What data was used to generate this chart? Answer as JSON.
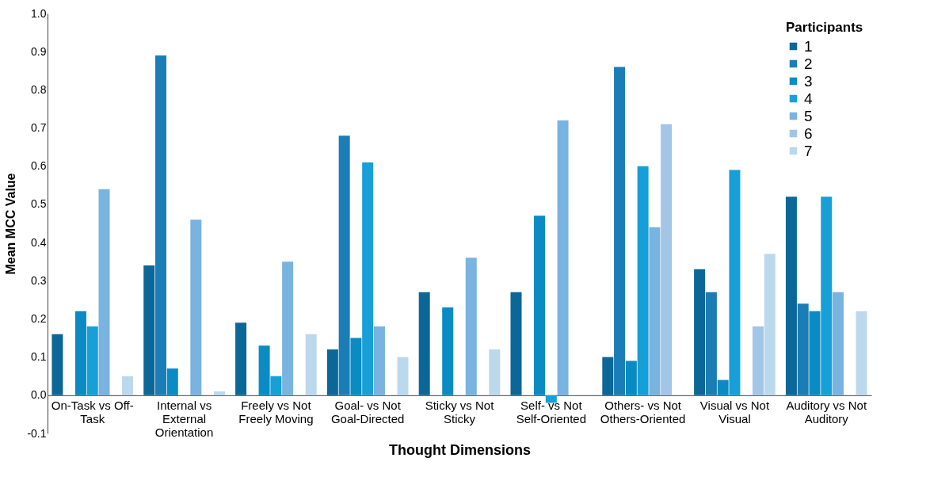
{
  "chart_data": {
    "type": "bar",
    "xlabel": "Thought Dimensions",
    "ylabel": "Mean MCC Value",
    "legend_title": "Participants",
    "categories": [
      "On-Task vs Off-Task",
      "Internal vs External Orientation",
      "Freely vs Not Freely Moving",
      "Goal- vs Not Goal-Directed",
      "Sticky vs Not Sticky",
      "Self- vs Not Self-Oriented",
      "Others- vs Not Others-Oriented",
      "Visual vs Not Visual",
      "Auditory vs Not Auditory"
    ],
    "series": [
      {
        "name": "1",
        "color": "#0b6797",
        "values": [
          0.16,
          0.34,
          0.19,
          0.12,
          0.27,
          0.27,
          0.1,
          0.33,
          0.52
        ]
      },
      {
        "name": "2",
        "color": "#1a7db5",
        "values": [
          null,
          0.89,
          null,
          0.68,
          null,
          null,
          0.86,
          0.27,
          0.24
        ]
      },
      {
        "name": "3",
        "color": "#0a8bc4",
        "values": [
          0.22,
          0.07,
          0.13,
          0.15,
          0.23,
          0.47,
          0.09,
          0.04,
          0.22
        ]
      },
      {
        "name": "4",
        "color": "#179fd8",
        "values": [
          0.18,
          null,
          0.05,
          0.61,
          null,
          -0.02,
          0.6,
          0.59,
          0.52
        ]
      },
      {
        "name": "5",
        "color": "#79b3df",
        "values": [
          0.54,
          0.46,
          0.35,
          0.18,
          0.36,
          0.72,
          0.44,
          null,
          0.27
        ]
      },
      {
        "name": "6",
        "color": "#a3c5e6",
        "values": [
          null,
          null,
          null,
          null,
          null,
          null,
          0.71,
          0.18,
          null
        ]
      },
      {
        "name": "7",
        "color": "#bcd8ed",
        "values": [
          0.05,
          0.01,
          0.16,
          0.1,
          0.12,
          null,
          null,
          0.37,
          0.22
        ]
      }
    ],
    "ylim": [
      -0.1,
      1.0
    ],
    "yticks": [
      -0.1,
      {
        "value": 0,
        "label": "0.0"
      },
      0.1,
      0.2,
      0.3,
      0.4,
      0.5,
      0.6,
      0.7,
      0.8,
      0.9,
      {
        "value": 1,
        "label": "1.0"
      }
    ],
    "grid": false,
    "legend": "top right"
  }
}
